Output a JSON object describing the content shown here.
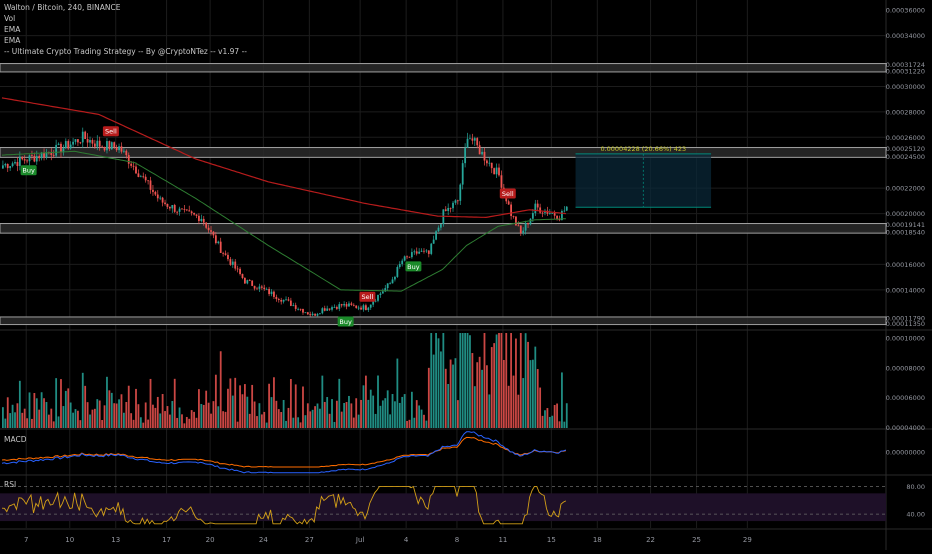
{
  "header": {
    "symbol_line": "Walton / Bitcoin, 240, BINANCE",
    "indicators": [
      "Vol",
      "EMA",
      "EMA",
      "-- Ultimate Crypto Trading Strategy -- By @CryptoNTez -- v1.97 --"
    ]
  },
  "colors": {
    "background": "#000000",
    "grid": "#1c1c1c",
    "up_candle": "#26a69a",
    "down_candle": "#ef5350",
    "ema_long": "#b71c1c",
    "ema_short": "#2e7d32",
    "zone_fill": "#2a2a2a",
    "zone_border": "#9e9e9e",
    "buy_label": "#1b8a2a",
    "sell_label": "#b71c1c",
    "macd_line": "#2962ff",
    "signal_line": "#ff6d00",
    "rsi_line": "#d4a017",
    "rsi_band": "#1e1028",
    "measure": "#00897b"
  },
  "chart_data": {
    "type": "candlestick",
    "main": {
      "ylim": [
        0.00011,
        0.000368
      ],
      "y_ticks": [
        "0.00036000",
        "0.00034000",
        "0.00031724",
        "0.00031220",
        "0.00030000",
        "0.00028000",
        "0.00026000",
        "0.00025120",
        "0.00024500",
        "0.00022000",
        "0.00020000",
        "0.00019141",
        "0.00018540",
        "0.00016000",
        "0.00014000",
        "0.00011790",
        "0.00011350"
      ],
      "y_tick_values": [
        0.00036,
        0.00034,
        0.00031724,
        0.0003122,
        0.0003,
        0.00028,
        0.00026,
        0.0002512,
        0.000245,
        0.00022,
        0.0002,
        0.00019141,
        0.0001854,
        0.00016,
        0.00014,
        0.0001179,
        0.0001135
      ],
      "zones": [
        {
          "low": 0.0003122,
          "high": 0.00031724
        },
        {
          "low": 0.000245,
          "high": 0.0002512
        },
        {
          "low": 0.0001854,
          "high": 0.00019141
        },
        {
          "low": 0.0001135,
          "high": 0.0001179
        }
      ],
      "close_anchors": [
        [
          0,
          0.000238
        ],
        [
          12,
          0.000244
        ],
        [
          25,
          0.000252
        ],
        [
          33,
          0.00026
        ],
        [
          40,
          0.000254
        ],
        [
          48,
          0.000252
        ],
        [
          55,
          0.000235
        ],
        [
          65,
          0.00021
        ],
        [
          75,
          0.0002
        ],
        [
          82,
          0.000197
        ],
        [
          90,
          0.000172
        ],
        [
          100,
          0.000147
        ],
        [
          110,
          0.000138
        ],
        [
          120,
          0.000128
        ],
        [
          128,
          0.00012
        ],
        [
          132,
          0.000125
        ],
        [
          140,
          0.000128
        ],
        [
          150,
          0.000126
        ],
        [
          160,
          0.000145
        ],
        [
          165,
          0.000163
        ],
        [
          172,
          0.00017
        ],
        [
          176,
          0.000168
        ],
        [
          182,
          0.0002
        ],
        [
          188,
          0.00021
        ],
        [
          192,
          0.000263
        ],
        [
          195,
          0.000255
        ],
        [
          198,
          0.000247
        ],
        [
          205,
          0.00023
        ],
        [
          210,
          0.0002
        ],
        [
          214,
          0.000184
        ],
        [
          218,
          0.000197
        ],
        [
          220,
          0.000205
        ],
        [
          226,
          0.000201
        ],
        [
          230,
          0.000198
        ],
        [
          233,
          0.000205
        ]
      ],
      "ema_short": [
        [
          0,
          0.000246
        ],
        [
          30,
          0.000249
        ],
        [
          55,
          0.00024
        ],
        [
          80,
          0.000212
        ],
        [
          110,
          0.000175
        ],
        [
          140,
          0.00014
        ],
        [
          165,
          0.000139
        ],
        [
          182,
          0.000156
        ],
        [
          192,
          0.000175
        ],
        [
          205,
          0.00019
        ],
        [
          220,
          0.000195
        ],
        [
          233,
          0.000196
        ]
      ],
      "ema_long": [
        [
          0,
          0.000291
        ],
        [
          40,
          0.000278
        ],
        [
          80,
          0.000243
        ],
        [
          110,
          0.000225
        ],
        [
          150,
          0.000208
        ],
        [
          180,
          0.000198
        ],
        [
          200,
          0.000197
        ],
        [
          218,
          0.000203
        ],
        [
          233,
          0.0002
        ]
      ],
      "signals": [
        {
          "label": "Buy",
          "bar": 11,
          "side": "buy"
        },
        {
          "label": "Sell",
          "bar": 45,
          "side": "sell"
        },
        {
          "label": "Buy",
          "bar": 142,
          "side": "buy"
        },
        {
          "label": "Sell",
          "bar": 151,
          "side": "sell"
        },
        {
          "label": "Buy",
          "bar": 170,
          "side": "buy"
        },
        {
          "label": "Sell",
          "bar": 209,
          "side": "sell"
        }
      ],
      "measurement": {
        "label": "0.00004228 (20.66%) 423",
        "from_bar": 237,
        "to_bar": 293,
        "low": 0.000205,
        "high": 0.000247
      }
    },
    "volume": {
      "y_ticks": [
        "0.00010000",
        "0.00008000",
        "0.00006000",
        "0.00004000"
      ],
      "y_tick_values": [
        0.0001,
        8e-05,
        6e-05,
        4e-05
      ],
      "ylim": [
        3.95e-05,
        0.0001035
      ]
    },
    "macd": {
      "label": "MACD",
      "y_ticks": [
        "0.00000000"
      ],
      "y_tick_values": [
        0
      ],
      "ylim": [
        -9e-06,
        9e-06
      ]
    },
    "rsi": {
      "label": "RSI",
      "y_ticks": [
        "80.00",
        "40.00"
      ],
      "y_tick_values": [
        80,
        40
      ],
      "ylim": [
        20,
        95
      ],
      "band": [
        30,
        70
      ]
    },
    "x_axis": {
      "labels": [
        "7",
        "10",
        "13",
        "17",
        "20",
        "24",
        "27",
        "Jul",
        "4",
        "8",
        "11",
        "15",
        "18",
        "22",
        "25",
        "29"
      ],
      "bars": [
        10,
        28,
        47,
        68,
        86,
        108,
        127,
        148,
        167,
        188,
        207,
        227,
        246,
        268,
        287,
        308
      ]
    }
  }
}
